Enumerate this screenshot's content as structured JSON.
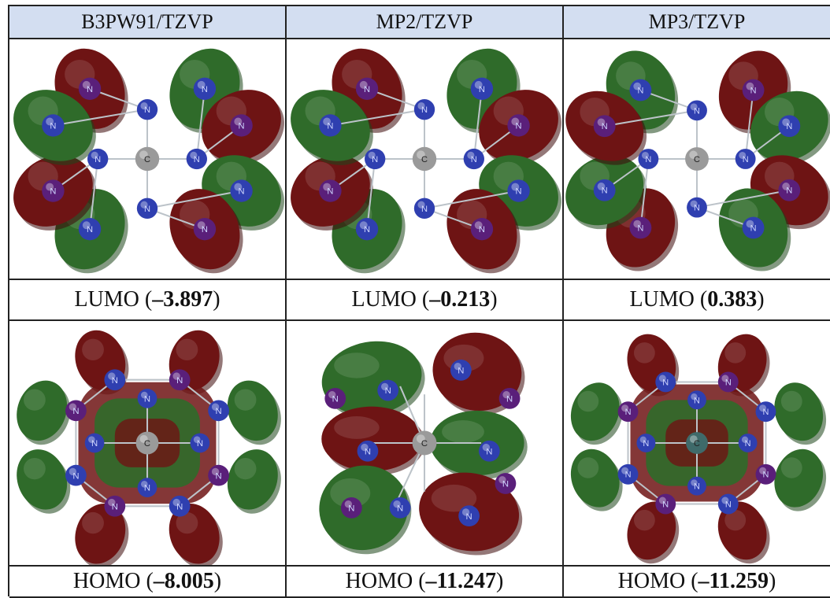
{
  "columns": [
    "B3PW91/TZVP",
    "MP2/TZVP",
    "MP3/TZVP"
  ],
  "lumo": [
    {
      "prefix": "LUMO (",
      "value": "–3.897",
      "suffix": ")"
    },
    {
      "prefix": "LUMO (",
      "value": "–0.213",
      "suffix": ")"
    },
    {
      "prefix": "LUMO (",
      "value": "0.383",
      "suffix": ")"
    }
  ],
  "homo": [
    {
      "prefix": "HOMO (",
      "value": "–8.005",
      "suffix": ")"
    },
    {
      "prefix": "HOMO (",
      "value": "–11.247",
      "suffix": ")"
    },
    {
      "prefix": "HOMO (",
      "value": "–11.259",
      "suffix": ")"
    }
  ],
  "atoms": {
    "center": "C",
    "outer": "N"
  },
  "colors": {
    "header_bg": "#d3def1",
    "lobe_red": "#6e1414",
    "lobe_green": "#2f6b2a",
    "atom_blue": "#2f3fb0",
    "atom_purple": "#5a1f7a",
    "carbon_gray": "#9a9a9a"
  }
}
